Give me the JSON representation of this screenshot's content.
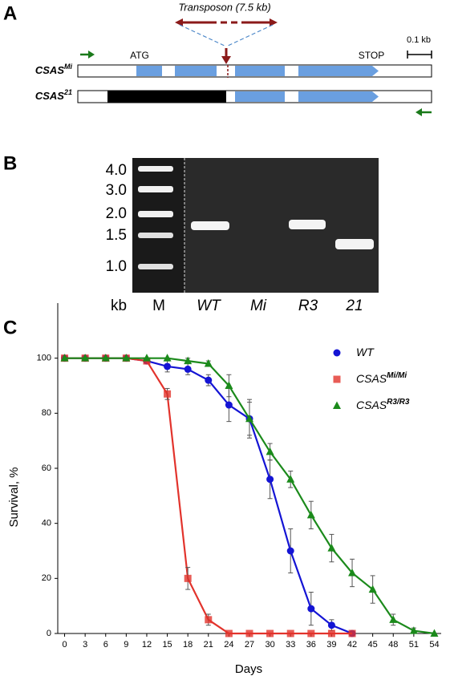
{
  "panel_a": {
    "letter": "A",
    "transposon": "Transposon (7.5 kb)",
    "atg": "ATG",
    "stop": "STOP",
    "scale": "0.1 kb",
    "rows": [
      {
        "name": "CSAS",
        "superscript": "Mi"
      },
      {
        "name": "CSAS",
        "superscript": "21"
      }
    ]
  },
  "panel_b": {
    "letter": "B",
    "size_labels": [
      "4.0",
      "3.0",
      "2.0",
      "1.5",
      "1.0"
    ],
    "lane_labels": [
      "kb",
      "M",
      "WT",
      "Mi",
      "R3",
      "21"
    ]
  },
  "chart_data": {
    "type": "line",
    "letter": "C",
    "x_label": "Days",
    "y_label": "Survival, %",
    "xlim": [
      -1,
      55
    ],
    "ylim": [
      0,
      120
    ],
    "xticks": [
      0,
      3,
      6,
      9,
      12,
      15,
      18,
      21,
      24,
      27,
      30,
      33,
      36,
      39,
      42,
      45,
      48,
      51,
      54
    ],
    "yticks": [
      0,
      20,
      40,
      60,
      80,
      100
    ],
    "series": [
      {
        "name": "WT",
        "marker": "circle",
        "color": "#1414d4",
        "x": [
          0,
          3,
          6,
          9,
          12,
          15,
          18,
          21,
          24,
          27,
          30,
          33,
          36,
          39,
          42
        ],
        "values": [
          100,
          100,
          100,
          100,
          99,
          97,
          96,
          92,
          83,
          78,
          56,
          30,
          9,
          3,
          0
        ],
        "errors": [
          0,
          0,
          0,
          0,
          0,
          2,
          2,
          2,
          6,
          6,
          7,
          8,
          6,
          2,
          0
        ]
      },
      {
        "name": "CSAS",
        "superscript": "Mi/Mi",
        "marker": "square",
        "color": "#e2332c",
        "x": [
          0,
          3,
          6,
          9,
          12,
          15,
          18,
          21,
          24,
          27,
          30,
          33,
          36,
          39,
          42
        ],
        "values": [
          100,
          100,
          100,
          100,
          99,
          87,
          20,
          5,
          0,
          0,
          0,
          0,
          0,
          0,
          0
        ],
        "errors": [
          0,
          0,
          0,
          0,
          0,
          2,
          4,
          2,
          0,
          0,
          0,
          0,
          0,
          0,
          0
        ]
      },
      {
        "name": "CSAS",
        "superscript": "R3/R3",
        "marker": "triangle",
        "color": "#1b8a1b",
        "x": [
          0,
          3,
          6,
          9,
          12,
          15,
          18,
          21,
          24,
          27,
          30,
          33,
          36,
          39,
          42,
          45,
          48,
          51,
          54
        ],
        "values": [
          100,
          100,
          100,
          100,
          100,
          100,
          99,
          98,
          90,
          78,
          66,
          56,
          43,
          31,
          22,
          16,
          5,
          1,
          0
        ],
        "errors": [
          0,
          0,
          0,
          0,
          0,
          0,
          1,
          1,
          4,
          7,
          3,
          3,
          5,
          5,
          5,
          5,
          2,
          1,
          0
        ]
      }
    ]
  }
}
